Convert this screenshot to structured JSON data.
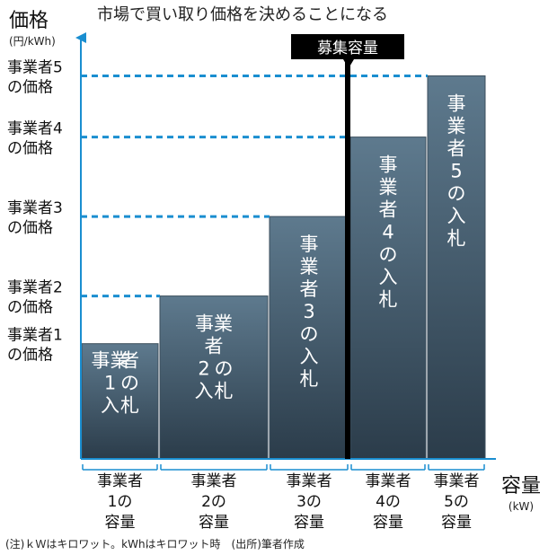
{
  "chart_data": {
    "type": "bar",
    "title": "市場で買い取り価格を決めることになる",
    "ylabel": "価格",
    "yunit": "(円/kWh)",
    "xlabel": "容量",
    "xunit": "(kW)",
    "capacity_label": "募集容量",
    "note": "(注)ｋＷはキロワット。kWhはキロワット時　(出所)筆者作成",
    "y_tick_labels": [
      [
        "事業者1",
        "の価格"
      ],
      [
        "事業者2",
        "の価格"
      ],
      [
        "事業者3",
        "の価格"
      ],
      [
        "事業者4",
        "の価格"
      ],
      [
        "事業者5",
        "の価格"
      ]
    ],
    "categories": [
      [
        "事業者",
        "1の",
        "容量"
      ],
      [
        "事業者",
        "2の",
        "容量"
      ],
      [
        "事業者",
        "3の",
        "容量"
      ],
      [
        "事業者",
        "4の",
        "容量"
      ],
      [
        "事業者",
        "5の",
        "容量"
      ]
    ],
    "bar_labels": [
      [
        [
          "事業",
          "者"
        ],
        [
          "1",
          "の"
        ],
        [
          "入",
          "札"
        ]
      ],
      [
        [
          "事業"
        ],
        [
          "者"
        ],
        [
          "2",
          "の"
        ],
        [
          "入",
          "札"
        ]
      ],
      [
        [
          "事"
        ],
        [
          "業"
        ],
        [
          "者"
        ],
        [
          "3"
        ],
        [
          "の"
        ],
        [
          "入"
        ],
        [
          "札"
        ]
      ],
      [
        [
          "事"
        ],
        [
          "業"
        ],
        [
          "者"
        ],
        [
          "4"
        ],
        [
          "の"
        ],
        [
          "入"
        ],
        [
          "札"
        ]
      ],
      [
        [
          "事"
        ],
        [
          "業"
        ],
        [
          "者"
        ],
        [
          "5"
        ],
        [
          "の"
        ],
        [
          "入"
        ],
        [
          "札"
        ]
      ]
    ],
    "capacity_widths": [
      87,
      122,
      90,
      86,
      66
    ],
    "prices": [
      1.45,
      2.05,
      3.05,
      4.05,
      4.82
    ],
    "ylim": [
      0,
      5.3
    ],
    "capacity_line_at": 297,
    "colors": {
      "bar_top": "#5e7a8e",
      "bar_bottom": "#2b3c4a",
      "dashed": "#1a8ed0",
      "axis": "#1a8ed0",
      "capacity_line": "#000000"
    }
  }
}
